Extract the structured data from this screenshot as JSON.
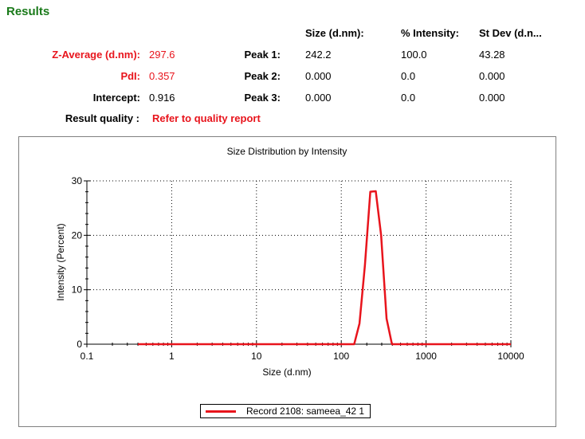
{
  "results": {
    "title": "Results",
    "headers": {
      "size": "Size (d.nm):",
      "intensity": "% Intensity:",
      "stdev": "St Dev (d.n..."
    },
    "zavg_label": "Z-Average (d.nm):",
    "zavg_value": "297.6",
    "pdi_label": "PdI:",
    "pdi_value": "0.357",
    "intercept_label": "Intercept:",
    "intercept_value": "0.916",
    "quality_label": "Result quality :",
    "quality_value": "Refer to quality report",
    "peaks": [
      {
        "label": "Peak 1:",
        "size": "242.2",
        "intensity": "100.0",
        "stdev": "43.28"
      },
      {
        "label": "Peak 2:",
        "size": "0.000",
        "intensity": "0.0",
        "stdev": "0.000"
      },
      {
        "label": "Peak 3:",
        "size": "0.000",
        "intensity": "0.0",
        "stdev": "0.000"
      }
    ],
    "colors": {
      "title": "#1a7a1a",
      "highlight": "#e8141c"
    }
  },
  "chart_data": {
    "type": "line",
    "title": "Size Distribution by Intensity",
    "xlabel": "Size (d.nm)",
    "ylabel": "Intensity (Percent)",
    "xscale": "log",
    "xlim": [
      0.1,
      10000
    ],
    "ylim": [
      0,
      30
    ],
    "xticks": [
      "0.1",
      "1",
      "10",
      "100",
      "1000",
      "10000"
    ],
    "yticks": [
      "0",
      "10",
      "20",
      "30"
    ],
    "grid": true,
    "legend_position": "bottom",
    "series": [
      {
        "name": "Record 2108: sameea_42 1",
        "color": "#e8141c",
        "x": [
          0.4,
          1,
          10,
          100,
          142,
          164,
          190,
          220,
          255,
          295,
          342,
          396,
          1000,
          10000
        ],
        "y": [
          0,
          0,
          0,
          0,
          0,
          3.8,
          14.5,
          28.0,
          28.1,
          20.0,
          4.7,
          0,
          0,
          0
        ]
      }
    ]
  }
}
